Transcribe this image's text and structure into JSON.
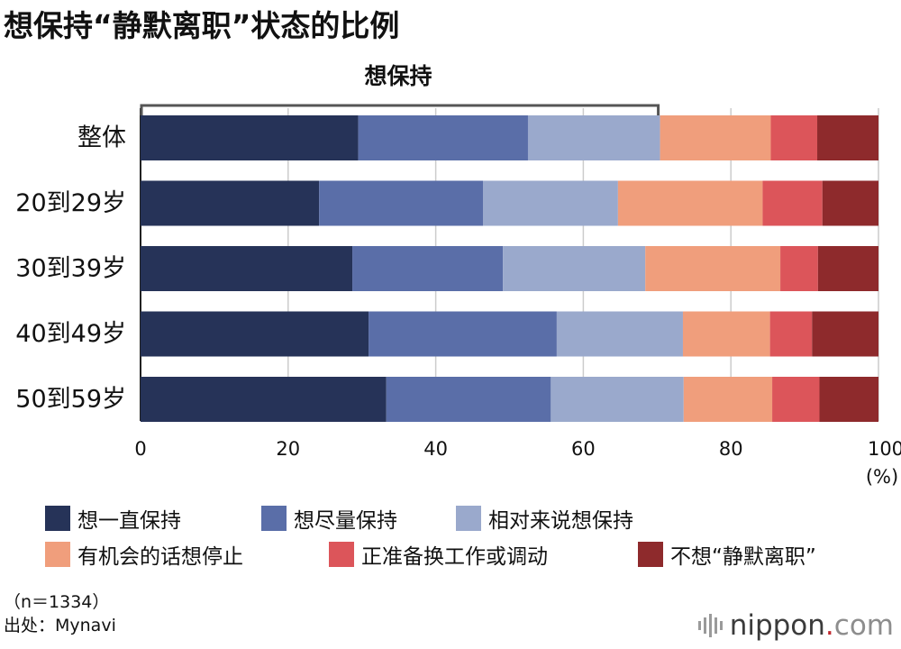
{
  "title": "想保持“静默离职”状态的比例",
  "bracket_label": "想保持",
  "chart_data": {
    "type": "bar",
    "orientation": "horizontal",
    "stacked": true,
    "title": "想保持“静默离职”状态的比例",
    "categories": [
      "整体",
      "20到29岁",
      "30到39岁",
      "40到49岁",
      "50到59岁"
    ],
    "series": [
      {
        "name": "想一直保持",
        "color": "#263358",
        "values": [
          29.5,
          24.2,
          28.7,
          30.9,
          33.3
        ]
      },
      {
        "name": "想尽量保持",
        "color": "#5a6ea8",
        "values": [
          23.0,
          22.2,
          20.4,
          25.5,
          22.3
        ]
      },
      {
        "name": "相对来说想保持",
        "color": "#9aa9cc",
        "values": [
          17.9,
          18.3,
          19.3,
          17.1,
          18.0
        ]
      },
      {
        "name": "有机会的话想停止",
        "color": "#f09e7c",
        "values": [
          15.0,
          19.6,
          18.3,
          11.8,
          12.0
        ]
      },
      {
        "name": "正准备换工作或调动",
        "color": "#dc555a",
        "values": [
          6.3,
          8.1,
          5.1,
          5.7,
          6.4
        ]
      },
      {
        "name": "不想“静默离职”",
        "color": "#8e2a2c",
        "values": [
          8.3,
          7.6,
          8.2,
          9.0,
          8.0
        ]
      }
    ],
    "xlim": [
      0,
      100
    ],
    "xticks": [
      "0",
      "20",
      "40",
      "60",
      "80",
      "100"
    ],
    "xunit": "(%)",
    "grid": true,
    "legend_position": "bottom",
    "bracket_range": [
      0,
      70.4
    ]
  },
  "note": {
    "sample": "（n＝1334）",
    "source": "出处：Mynavi"
  },
  "logo": {
    "name": "nippon",
    "dot": ".",
    "suffix": "com"
  }
}
